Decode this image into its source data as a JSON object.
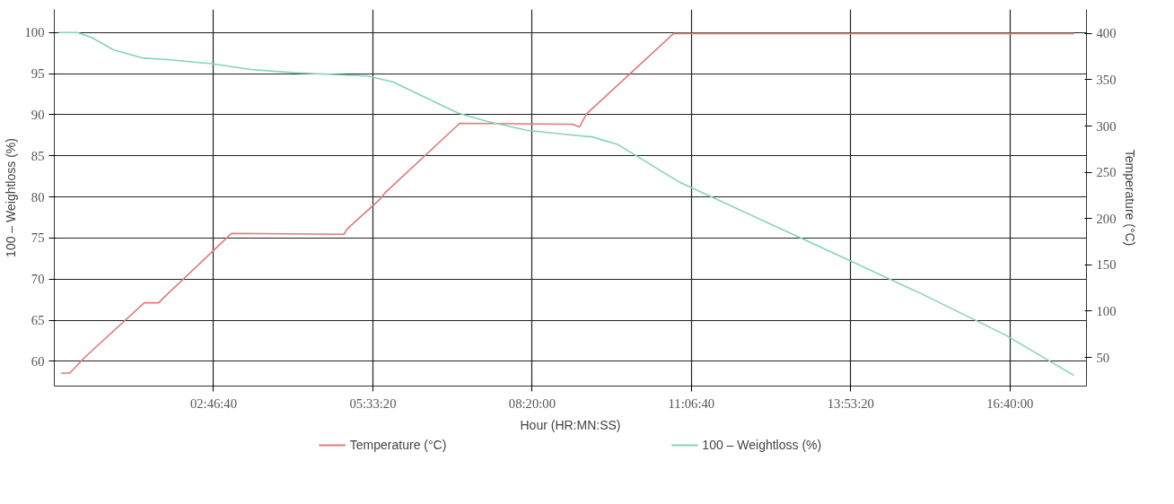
{
  "chart_data": {
    "type": "line",
    "xlabel": "Hour (HR:MN:SS)",
    "ylabel": "100 – Weightloss (%)",
    "y2label": "Temperature (°C)",
    "xlim": [
      0,
      18
    ],
    "xticks": [
      {
        "value": 2.7778,
        "label": "02:46:40"
      },
      {
        "value": 5.5556,
        "label": "05:33:20"
      },
      {
        "value": 8.3333,
        "label": "08:20:00"
      },
      {
        "value": 11.1111,
        "label": "11:06:40"
      },
      {
        "value": 13.8889,
        "label": "13:53:20"
      },
      {
        "value": 16.6667,
        "label": "16:40:00"
      }
    ],
    "ylim": [
      57,
      102.8
    ],
    "yticks": [
      60,
      65,
      70,
      75,
      80,
      85,
      90,
      95,
      100
    ],
    "y2lim": [
      19,
      426
    ],
    "y2ticks": [
      50,
      100,
      150,
      200,
      250,
      300,
      350,
      400
    ],
    "grid": true,
    "legend": "bottom",
    "line_style": "solid",
    "marker": "none",
    "series": [
      {
        "name": "Temperature (°C)",
        "color": "#e07a7a",
        "axis": "y2",
        "x": [
          0.12,
          0.27,
          0.53,
          1.57,
          1.82,
          1.95,
          3.09,
          5.05,
          5.11,
          5.68,
          5.77,
          7.07,
          9.03,
          9.16,
          9.28,
          10.8,
          17.78
        ],
        "values": [
          33,
          33,
          50,
          109,
          109,
          117,
          184,
          183,
          189,
          221,
          228,
          303,
          302,
          299,
          313,
          400,
          400
        ]
      },
      {
        "name": "100 – Weightloss (%)",
        "color": "#84d4b8",
        "x": [
          0.08,
          0.4,
          0.65,
          1.03,
          1.53,
          1.98,
          2.74,
          3.43,
          4.19,
          5.46,
          5.9,
          7.04,
          7.54,
          8.24,
          9.05,
          9.38,
          9.82,
          10.9,
          13.05,
          15.1,
          16.59,
          17.78
        ],
        "values": [
          100,
          100,
          99.4,
          97.9,
          96.9,
          96.7,
          96.2,
          95.5,
          95.1,
          94.7,
          94.0,
          90.2,
          89.2,
          88.1,
          87.5,
          87.3,
          86.4,
          81.8,
          74.9,
          68.3,
          63.2,
          58.3
        ]
      }
    ]
  }
}
